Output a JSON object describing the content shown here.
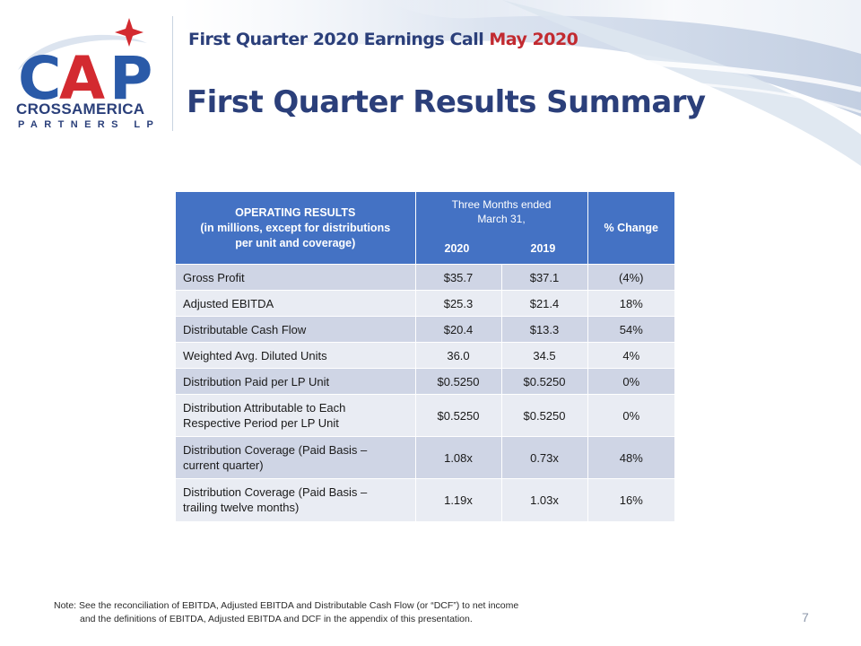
{
  "header": {
    "event_line_main": "First  Quarter  2020 Earnings  Call",
    "event_line_date": "May 2020",
    "page_title": "First Quarter Results Summary"
  },
  "logo": {
    "mark_text": "CAP",
    "company_line1": "CROSSAMERICA",
    "company_line2": "PARTNERS LP",
    "colors": {
      "blue": "#2a5aa8",
      "red": "#d32a30"
    }
  },
  "table": {
    "header_operating": [
      "OPERATING RESULTS",
      "(in millions, except for distributions",
      "per unit and coverage)"
    ],
    "header_period": [
      "Three Months ended",
      "March 31,"
    ],
    "header_year_1": "2020",
    "header_year_2": "2019",
    "header_change": "% Change",
    "rows": [
      {
        "label": "Gross Profit",
        "v2020": "$35.7",
        "v2019": "$37.1",
        "change": "(4%)"
      },
      {
        "label": "Adjusted EBITDA",
        "v2020": "$25.3",
        "v2019": "$21.4",
        "change": "18%"
      },
      {
        "label": "Distributable Cash Flow",
        "v2020": "$20.4",
        "v2019": "$13.3",
        "change": "54%"
      },
      {
        "label": "Weighted Avg. Diluted Units",
        "v2020": "36.0",
        "v2019": "34.5",
        "change": "4%"
      },
      {
        "label": "Distribution Paid per LP Unit",
        "v2020": "$0.5250",
        "v2019": "$0.5250",
        "change": "0%"
      },
      {
        "label_lines": [
          "Distribution Attributable to Each",
          "Respective Period per LP Unit"
        ],
        "v2020": "$0.5250",
        "v2019": "$0.5250",
        "change": "0%"
      },
      {
        "label_lines": [
          "Distribution Coverage (Paid Basis –",
          "current quarter)"
        ],
        "v2020": "1.08x",
        "v2019": "0.73x",
        "change": "48%"
      },
      {
        "label_lines": [
          "Distribution Coverage (Paid Basis –",
          "trailing twelve months)"
        ],
        "v2020": "1.19x",
        "v2019": "1.03x",
        "change": "16%"
      }
    ],
    "colors": {
      "header_bg": "#4472c4",
      "row_dark": "#cfd5e5",
      "row_light": "#e9ecf3"
    }
  },
  "footer": {
    "note_line1": "Note: See the reconciliation of EBITDA, Adjusted EBITDA and Distributable Cash Flow (or “DCF”) to net income",
    "note_line2": "and the definitions of EBITDA, Adjusted EBITDA and DCF in the appendix of this presentation.",
    "page_number": "7"
  }
}
